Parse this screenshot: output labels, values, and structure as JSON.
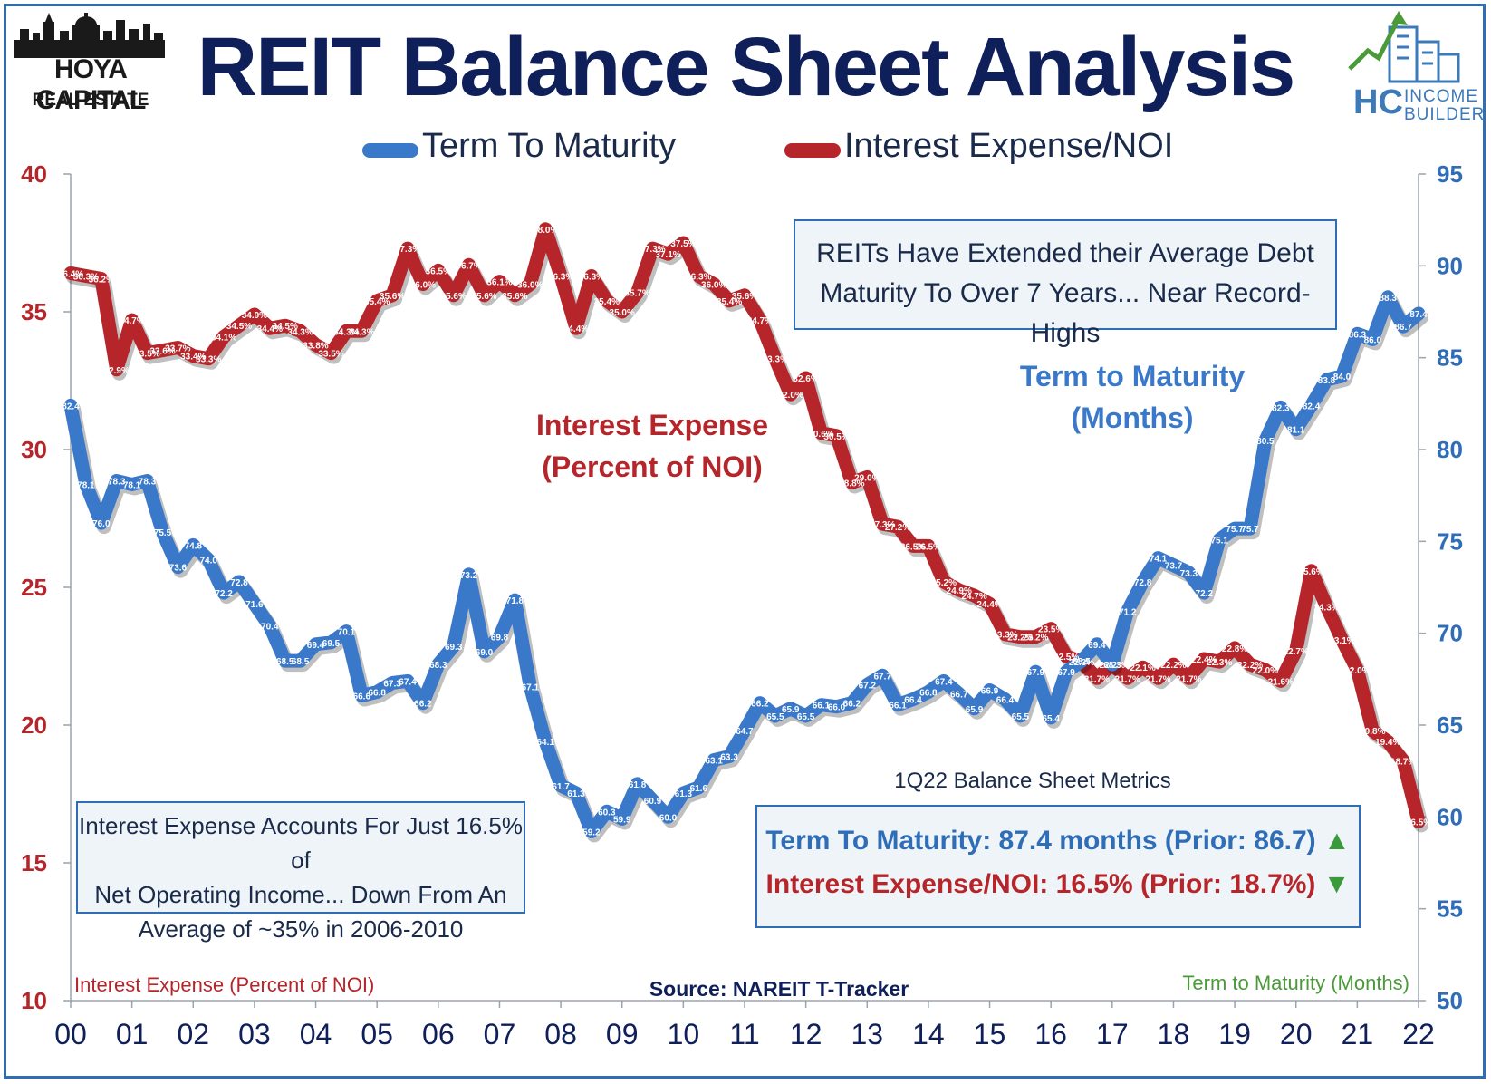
{
  "header": {
    "title": "REIT Balance Sheet Analysis",
    "logo_left_name": "HOYA CAPITAL",
    "logo_left_sub": "REAL ESTATE",
    "logo_right_hc": "HC",
    "logo_right_line1": "INCOME",
    "logo_right_line2": "BUILDER"
  },
  "annotations": {
    "top_box_line1": "REITs Have Extended their Average Debt",
    "top_box_line2": "Maturity To Over 7 Years... Near Record-Highs",
    "interest_label_line1": "Interest Expense",
    "interest_label_line2": "(Percent of NOI)",
    "term_label_line1": "Term to Maturity",
    "term_label_line2": "(Months)",
    "left_box_line1": "Interest Expense Accounts For Just 16.5% of",
    "left_box_line2": "Net Operating Income... Down From An",
    "left_box_line3": "Average of ~35% in 2006-2010",
    "metrics_caption": "1Q22 Balance Sheet Metrics",
    "metric_term": "Term To Maturity: 87.4 months (Prior: 86.7)",
    "metric_interest": "Interest Expense/NOI: 16.5% (Prior: 18.7%)",
    "source": "Source: NAREIT T-Tracker",
    "left_axis_caption": "Interest Expense (Percent of NOI)",
    "right_axis_caption": "Term to Maturity (Months)"
  },
  "colors": {
    "term": "#3a78c9",
    "interest": "#b6252a",
    "title": "#0f1f5a",
    "up_arrow": "#3a9a3a",
    "right_axis": "#2f6db7",
    "left_axis": "#b6252a"
  },
  "chart_data": {
    "type": "line",
    "title": "REIT Balance Sheet Analysis",
    "x_ticks": [
      "00",
      "01",
      "02",
      "03",
      "04",
      "05",
      "06",
      "07",
      "08",
      "09",
      "10",
      "11",
      "12",
      "13",
      "14",
      "15",
      "16",
      "17",
      "18",
      "19",
      "20",
      "21",
      "22"
    ],
    "y_left": {
      "label": "Interest Expense (Percent of NOI)",
      "range": [
        10,
        40
      ],
      "ticks": [
        10,
        15,
        20,
        25,
        30,
        35,
        40
      ]
    },
    "y_right": {
      "label": "Term to Maturity (Months)",
      "range": [
        50,
        95
      ],
      "ticks": [
        50,
        55,
        60,
        65,
        70,
        75,
        80,
        85,
        90,
        95
      ]
    },
    "legend": [
      "Term To Maturity",
      "Interest Expense/NOI"
    ],
    "legend_position": "top",
    "series": [
      {
        "name": "Interest Expense/NOI",
        "axis": "left",
        "x": [
          2000.0,
          2000.25,
          2000.5,
          2000.75,
          2001.0,
          2001.25,
          2001.5,
          2001.75,
          2002.0,
          2002.25,
          2002.5,
          2002.75,
          2003.0,
          2003.25,
          2003.5,
          2003.75,
          2004.0,
          2004.25,
          2004.5,
          2004.75,
          2005.0,
          2005.25,
          2005.5,
          2005.75,
          2006.0,
          2006.25,
          2006.5,
          2006.75,
          2007.0,
          2007.25,
          2007.5,
          2007.75,
          2008.0,
          2008.25,
          2008.5,
          2008.75,
          2009.0,
          2009.25,
          2009.5,
          2009.75,
          2010.0,
          2010.25,
          2010.5,
          2010.75,
          2011.0,
          2011.25,
          2011.5,
          2011.75,
          2012.0,
          2012.25,
          2012.5,
          2012.75,
          2013.0,
          2013.25,
          2013.5,
          2013.75,
          2014.0,
          2014.25,
          2014.5,
          2014.75,
          2015.0,
          2015.25,
          2015.5,
          2015.75,
          2016.0,
          2016.25,
          2016.5,
          2016.75,
          2017.0,
          2017.25,
          2017.5,
          2017.75,
          2018.0,
          2018.25,
          2018.5,
          2018.75,
          2019.0,
          2019.25,
          2019.5,
          2019.75,
          2020.0,
          2020.25,
          2020.5,
          2020.75,
          2021.0,
          2021.25,
          2021.5,
          2021.75,
          2022.0
        ],
        "values": [
          36.4,
          36.3,
          36.2,
          32.9,
          34.7,
          33.5,
          33.6,
          33.7,
          33.4,
          33.3,
          34.1,
          34.5,
          34.9,
          34.4,
          34.5,
          34.3,
          33.8,
          33.5,
          34.3,
          34.3,
          35.4,
          35.6,
          37.3,
          36.0,
          36.5,
          35.6,
          36.7,
          35.6,
          36.1,
          35.6,
          36.0,
          38.0,
          36.3,
          34.4,
          36.3,
          35.4,
          35.0,
          35.7,
          37.3,
          37.1,
          37.5,
          36.3,
          36.0,
          35.4,
          35.6,
          34.7,
          33.3,
          32.0,
          32.6,
          30.6,
          30.5,
          28.8,
          29.0,
          27.3,
          27.2,
          26.5,
          26.5,
          25.2,
          24.9,
          24.7,
          24.4,
          23.3,
          23.2,
          23.2,
          23.5,
          22.5,
          22.3,
          21.7,
          22.2,
          21.7,
          22.1,
          21.7,
          22.2,
          21.7,
          22.4,
          22.3,
          22.8,
          22.2,
          22.0,
          21.6,
          22.7,
          25.6,
          24.3,
          23.1,
          22.0,
          19.8,
          19.4,
          18.7,
          16.5
        ],
        "labels": [
          "36.4%",
          "36.3%",
          "36.2%",
          "32.9%",
          "34.7%",
          "33.5%",
          "33.6%",
          "33.7%",
          "33.4%",
          "33.3%",
          "34.1%",
          "34.5%",
          "34.9%",
          "34.4%",
          "34.5%",
          "34.3%",
          "33.8%",
          "33.5%",
          "34.3%",
          "34.3%",
          "35.4%",
          "35.6%",
          "37.3%",
          "36.0%",
          "36.5%",
          "35.6%",
          "36.7%",
          "35.6%",
          "36.1%",
          "35.6%",
          "36.0%",
          "38.0%",
          "36.3%",
          "34.4%",
          "36.3%",
          "35.4%",
          "35.0%",
          "35.7%",
          "37.3%",
          "37.1%",
          "37.5%",
          "36.3%",
          "36.0%",
          "35.4%",
          "35.6%",
          "34.7%",
          "33.3%",
          "32.0%",
          "32.6%",
          "30.6%",
          "30.5%",
          "28.8%",
          "29.0%",
          "27.3%",
          "27.2%",
          "26.5%",
          "26.5%",
          "25.2%",
          "24.9%",
          "24.7%",
          "24.4%",
          "23.3%",
          "23.2%",
          "23.2%",
          "23.5%",
          "22.5%",
          "22.3%",
          "21.7%",
          "22.2%",
          "21.7%",
          "22.1%",
          "21.7%",
          "22.2%",
          "21.7%",
          "22.4%",
          "22.3%",
          "22.8%",
          "22.2%",
          "22.0%",
          "21.6%",
          "22.7%",
          "25.6%",
          "24.3%",
          "23.1%",
          "22.0%",
          "19.8%",
          "19.4%",
          "18.7%",
          "16.5%"
        ]
      },
      {
        "name": "Term To Maturity",
        "axis": "right",
        "x": [
          2000.0,
          2000.25,
          2000.5,
          2000.75,
          2001.0,
          2001.25,
          2001.5,
          2001.75,
          2002.0,
          2002.25,
          2002.5,
          2002.75,
          2003.0,
          2003.25,
          2003.5,
          2003.75,
          2004.0,
          2004.25,
          2004.5,
          2004.75,
          2005.0,
          2005.25,
          2005.5,
          2005.75,
          2006.0,
          2006.25,
          2006.5,
          2006.75,
          2007.0,
          2007.25,
          2007.5,
          2007.75,
          2008.0,
          2008.25,
          2008.5,
          2008.75,
          2009.0,
          2009.25,
          2009.5,
          2009.75,
          2010.0,
          2010.25,
          2010.5,
          2010.75,
          2011.0,
          2011.25,
          2011.5,
          2011.75,
          2012.0,
          2012.25,
          2012.5,
          2012.75,
          2013.0,
          2013.25,
          2013.5,
          2013.75,
          2014.0,
          2014.25,
          2014.5,
          2014.75,
          2015.0,
          2015.25,
          2015.5,
          2015.75,
          2016.0,
          2016.25,
          2016.5,
          2016.75,
          2017.0,
          2017.25,
          2017.5,
          2017.75,
          2018.0,
          2018.25,
          2018.5,
          2018.75,
          2019.0,
          2019.25,
          2019.5,
          2019.75,
          2020.0,
          2020.25,
          2020.5,
          2020.75,
          2021.0,
          2021.25,
          2021.5,
          2021.75,
          2022.0
        ],
        "values": [
          82.4,
          78.1,
          76.0,
          78.3,
          78.1,
          78.3,
          75.5,
          73.6,
          74.8,
          74.0,
          72.2,
          72.8,
          71.6,
          70.4,
          68.5,
          68.5,
          69.4,
          69.5,
          70.1,
          66.6,
          66.8,
          67.3,
          67.4,
          66.2,
          68.3,
          69.3,
          73.2,
          69.0,
          69.8,
          71.8,
          67.1,
          64.1,
          61.7,
          61.3,
          59.2,
          60.3,
          59.9,
          61.8,
          60.9,
          60.0,
          61.3,
          61.6,
          63.1,
          63.3,
          64.7,
          66.2,
          65.5,
          65.9,
          65.5,
          66.1,
          66.0,
          66.2,
          67.2,
          67.7,
          66.1,
          66.4,
          66.8,
          67.4,
          66.7,
          65.9,
          66.9,
          66.4,
          65.5,
          67.9,
          65.4,
          67.9,
          68.5,
          69.4,
          68.3,
          71.2,
          72.8,
          74.1,
          73.7,
          73.3,
          72.2,
          75.1,
          75.7,
          75.7,
          80.5,
          82.3,
          81.1,
          82.4,
          83.8,
          84.0,
          86.3,
          86.0,
          88.3,
          86.7,
          87.4
        ],
        "labels": [
          "82.4",
          "78.1",
          "76.0",
          "78.3",
          "78.1",
          "78.3",
          "75.5",
          "73.6",
          "74.8",
          "74.0",
          "72.2",
          "72.8",
          "71.6",
          "70.4",
          "68.5",
          "68.5",
          "69.4",
          "69.5",
          "70.1",
          "66.6",
          "66.8",
          "67.3",
          "67.4",
          "66.2",
          "68.3",
          "69.3",
          "73.2",
          "69.0",
          "69.8",
          "71.8",
          "67.1",
          "64.1",
          "61.7",
          "61.3",
          "59.2",
          "60.3",
          "59.9",
          "61.8",
          "60.9",
          "60.0",
          "61.3",
          "61.6",
          "63.1",
          "63.3",
          "64.7",
          "66.2",
          "65.5",
          "65.9",
          "65.5",
          "66.1",
          "66.0",
          "66.2",
          "67.2",
          "67.7",
          "66.1",
          "66.4",
          "66.8",
          "67.4",
          "66.7",
          "65.9",
          "66.9",
          "66.4",
          "65.5",
          "67.9",
          "65.4",
          "67.9",
          "68.5",
          "69.4",
          "68.3",
          "71.2",
          "72.8",
          "74.1",
          "73.7",
          "73.3",
          "72.2",
          "75.1",
          "75.7",
          "75.7",
          "80.5",
          "82.3",
          "81.1",
          "82.4",
          "83.8",
          "84.0",
          "86.3",
          "86.0",
          "88.3",
          "86.7",
          "87.4"
        ]
      }
    ]
  }
}
